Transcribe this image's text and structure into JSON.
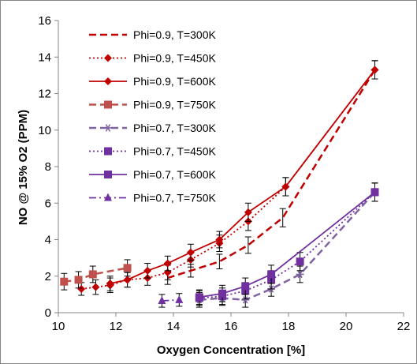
{
  "chart_data": {
    "type": "line",
    "title": "",
    "xlabel": "Oxygen Concentration [%]",
    "ylabel": "NO @ 15% O2  (PPM)",
    "xlim": [
      10,
      22
    ],
    "ylim": [
      0,
      16
    ],
    "xticks": [
      10,
      12,
      14,
      16,
      18,
      20,
      22
    ],
    "yticks": [
      0,
      2,
      4,
      6,
      8,
      10,
      12,
      14,
      16
    ],
    "grid": false,
    "legend_position": "top-left",
    "series": [
      {
        "name": "Phi=0.9, T=300K",
        "color": "#c00000",
        "dash": "dash",
        "marker": "none",
        "x": [
          13.8,
          14.6,
          15.6,
          16.6,
          17.8,
          21.0
        ],
        "y": [
          1.9,
          2.3,
          2.8,
          3.7,
          5.2,
          13.3
        ],
        "err": [
          0.35,
          0.35,
          0.4,
          0.45,
          0.5,
          0.5
        ]
      },
      {
        "name": "Phi=0.9, T=450K",
        "color": "#c00000",
        "dash": "dot",
        "marker": "diamond",
        "x": [
          10.8,
          11.3,
          11.8,
          12.4,
          13.1,
          13.8,
          14.6,
          15.6,
          16.6,
          17.9,
          21.0
        ],
        "y": [
          1.3,
          1.4,
          1.5,
          1.8,
          1.9,
          2.2,
          2.9,
          3.8,
          5.0,
          6.9,
          13.3
        ],
        "err": [
          0.35,
          0.4,
          0.4,
          0.4,
          0.4,
          0.4,
          0.4,
          0.45,
          0.5,
          0.5,
          0.5
        ]
      },
      {
        "name": "Phi=0.9, T=600K",
        "color": "#c00000",
        "dash": "solid",
        "marker": "diamond",
        "x": [
          11.8,
          12.4,
          13.1,
          13.8,
          14.6,
          15.6,
          16.6,
          17.9,
          21.0
        ],
        "y": [
          1.6,
          1.8,
          2.3,
          2.7,
          3.3,
          4.0,
          5.5,
          6.9,
          13.3
        ],
        "err": [
          0.4,
          0.4,
          0.4,
          0.4,
          0.45,
          0.45,
          0.5,
          0.5,
          0.5
        ]
      },
      {
        "name": "Phi=0.9, T=750K",
        "color": "#c0504d",
        "dash": "dash",
        "marker": "square",
        "x": [
          10.2,
          10.7,
          11.2,
          12.4
        ],
        "y": [
          1.7,
          1.8,
          2.1,
          2.45
        ],
        "err": [
          0.45,
          0.45,
          0.45,
          0.45
        ]
      },
      {
        "name": "Phi=0.7, T=300K",
        "color": "#8064a2",
        "dash": "dash",
        "marker": "asterisk",
        "x": [
          14.9,
          15.7,
          16.5,
          17.4,
          18.4,
          21.0
        ],
        "y": [
          0.7,
          0.8,
          0.7,
          1.3,
          2.1,
          6.6
        ],
        "err": [
          0.4,
          0.4,
          0.4,
          0.4,
          0.45,
          0.5
        ]
      },
      {
        "name": "Phi=0.7, T=450K",
        "color": "#7030a0",
        "dash": "dot",
        "marker": "square",
        "x": [
          14.9,
          15.7,
          16.5,
          17.4,
          18.4,
          21.0
        ],
        "y": [
          0.8,
          0.9,
          1.2,
          1.8,
          2.8,
          6.6
        ],
        "err": [
          0.4,
          0.45,
          0.45,
          0.5,
          0.5,
          0.5
        ]
      },
      {
        "name": "Phi=0.7, T=600K",
        "color": "#7030a0",
        "dash": "solid",
        "marker": "square",
        "x": [
          14.9,
          15.7,
          16.5,
          17.4,
          21.0
        ],
        "y": [
          0.85,
          1.05,
          1.45,
          2.1,
          6.6
        ],
        "err": [
          0.4,
          0.45,
          0.45,
          0.5,
          0.5
        ]
      },
      {
        "name": "Phi=0.7, T=750K",
        "color": "#7030a0",
        "dash": "dashdot",
        "marker": "triangle",
        "x": [
          13.6,
          14.2
        ],
        "y": [
          0.65,
          0.7
        ],
        "err": [
          0.35,
          0.35
        ]
      }
    ]
  }
}
